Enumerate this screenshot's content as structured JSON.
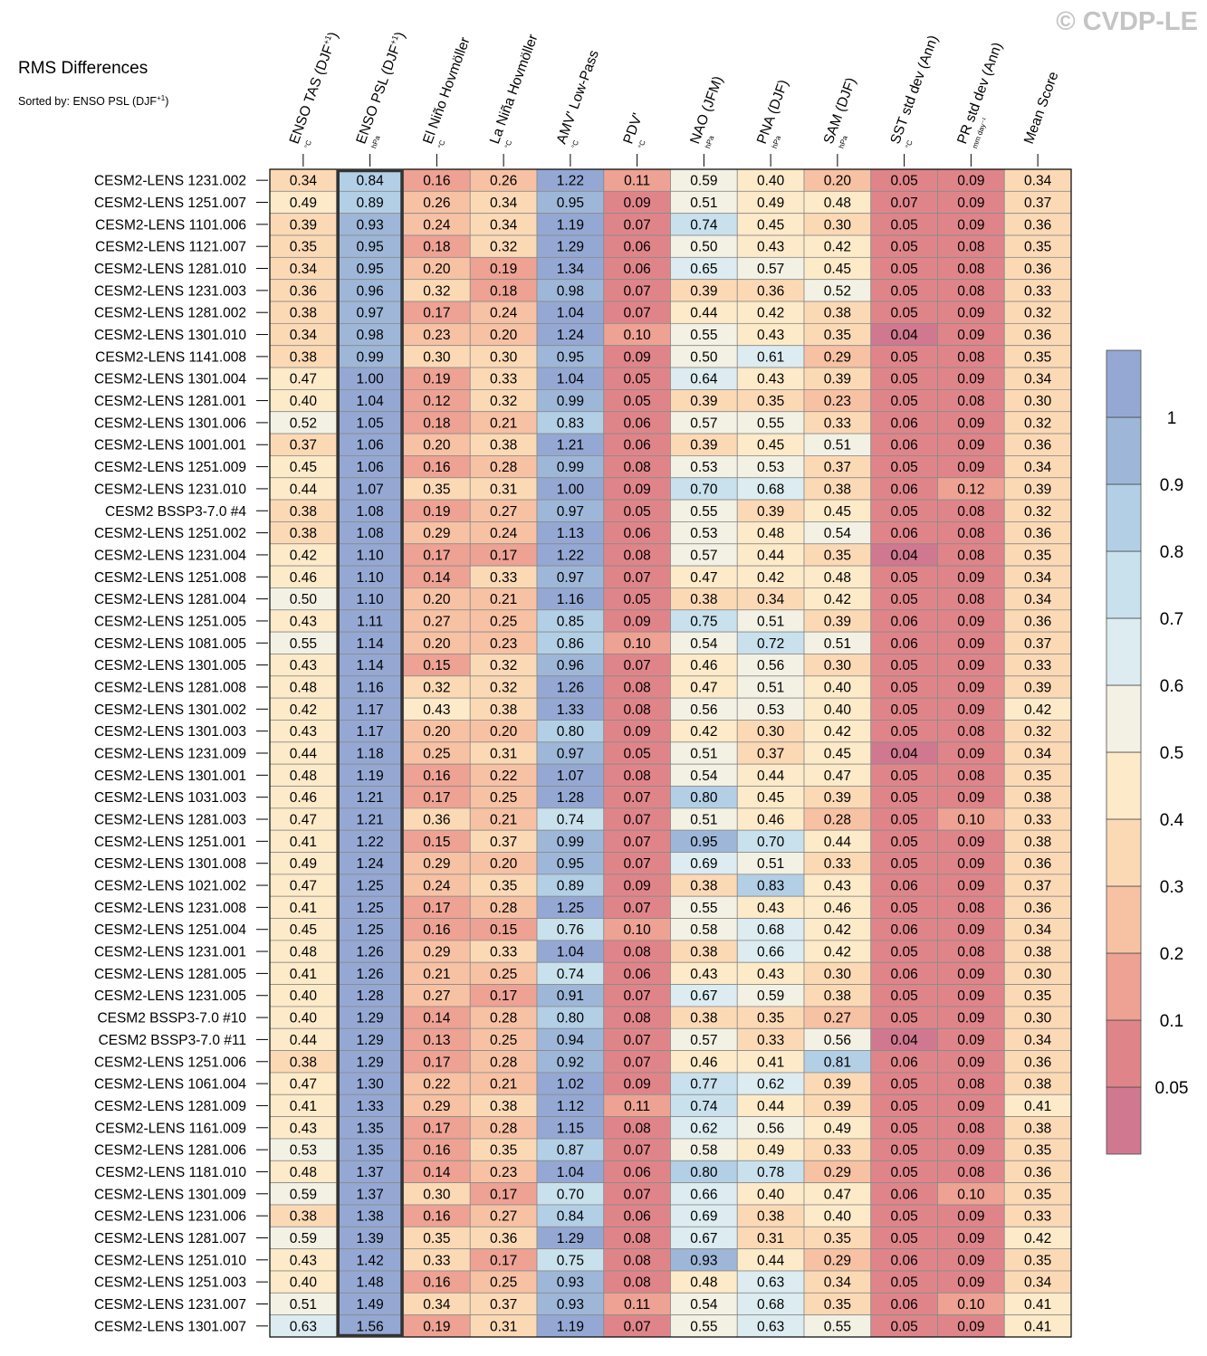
{
  "watermark": "© CVDP-LE",
  "title": "RMS Differences",
  "sort_label": "Sorted by: ENSO PSL (DJF",
  "sort_label_sup": "+1",
  "sort_label_end": ")",
  "colors": {
    "bins": [
      "#d0788f",
      "#df858a",
      "#eda294",
      "#f7c1a4",
      "#fcd9b5",
      "#fdeac8",
      "#f3f1e4",
      "#dcecf1",
      "#c9e1ec",
      "#b3cfe6",
      "#9eb7d8",
      "#95a8d4"
    ],
    "grid": "#8a8a8a",
    "frame": "#000000",
    "highlight_border": "#333333"
  },
  "colorbar": {
    "thresholds": [
      0.05,
      0.1,
      0.2,
      0.3,
      0.4,
      0.5,
      0.6,
      0.7,
      0.8,
      0.9,
      1.0
    ],
    "labels": [
      "0.05",
      "0.1",
      "0.2",
      "0.3",
      "0.4",
      "0.5",
      "0.6",
      "0.7",
      "0.8",
      "0.9",
      "1"
    ]
  },
  "chart_data": {
    "type": "heatmap",
    "title": "RMS Differences",
    "sorted_by": "ENSO PSL (DJF+1)",
    "highlighted_column": 1,
    "columns": [
      {
        "label": "ENSO TAS (DJF",
        "sup": "+1",
        "end": ")",
        "unit": "°C"
      },
      {
        "label": "ENSO PSL (DJF",
        "sup": "+1",
        "end": ")",
        "unit": "hPa"
      },
      {
        "label": "El Niño Hovmöller",
        "sup": "",
        "end": "",
        "unit": "°C"
      },
      {
        "label": "La Niña Hovmöller",
        "sup": "",
        "end": "",
        "unit": "°C"
      },
      {
        "label": "AMV' Low-Pass",
        "sup": "",
        "end": "",
        "unit": "°C"
      },
      {
        "label": "PDV'",
        "sup": "",
        "end": "",
        "unit": "°C"
      },
      {
        "label": "NAO (JFM)",
        "sup": "",
        "end": "",
        "unit": "hPa"
      },
      {
        "label": "PNA (DJF)",
        "sup": "",
        "end": "",
        "unit": "hPa"
      },
      {
        "label": "SAM (DJF)",
        "sup": "",
        "end": "",
        "unit": "hPa"
      },
      {
        "label": "SST std dev (Ann)",
        "sup": "",
        "end": "",
        "unit": "°C"
      },
      {
        "label": "PR std dev (Ann)",
        "sup": "",
        "end": "",
        "unit": "mm day⁻¹"
      },
      {
        "label": "Mean Score",
        "sup": "",
        "end": "",
        "unit": ""
      }
    ],
    "rows": [
      "CESM2-LENS 1231.002",
      "CESM2-LENS 1251.007",
      "CESM2-LENS 1101.006",
      "CESM2-LENS 1121.007",
      "CESM2-LENS 1281.010",
      "CESM2-LENS 1231.003",
      "CESM2-LENS 1281.002",
      "CESM2-LENS 1301.010",
      "CESM2-LENS 1141.008",
      "CESM2-LENS 1301.004",
      "CESM2-LENS 1281.001",
      "CESM2-LENS 1301.006",
      "CESM2-LENS 1001.001",
      "CESM2-LENS 1251.009",
      "CESM2-LENS 1231.010",
      "CESM2 BSSP3-7.0 #4",
      "CESM2-LENS 1251.002",
      "CESM2-LENS 1231.004",
      "CESM2-LENS 1251.008",
      "CESM2-LENS 1281.004",
      "CESM2-LENS 1251.005",
      "CESM2-LENS 1081.005",
      "CESM2-LENS 1301.005",
      "CESM2-LENS 1281.008",
      "CESM2-LENS 1301.002",
      "CESM2-LENS 1301.003",
      "CESM2-LENS 1231.009",
      "CESM2-LENS 1301.001",
      "CESM2-LENS 1031.003",
      "CESM2-LENS 1281.003",
      "CESM2-LENS 1251.001",
      "CESM2-LENS 1301.008",
      "CESM2-LENS 1021.002",
      "CESM2-LENS 1231.008",
      "CESM2-LENS 1251.004",
      "CESM2-LENS 1231.001",
      "CESM2-LENS 1281.005",
      "CESM2-LENS 1231.005",
      "CESM2 BSSP3-7.0 #10",
      "CESM2 BSSP3-7.0 #11",
      "CESM2-LENS 1251.006",
      "CESM2-LENS 1061.004",
      "CESM2-LENS 1281.009",
      "CESM2-LENS 1161.009",
      "CESM2-LENS 1281.006",
      "CESM2-LENS 1181.010",
      "CESM2-LENS 1301.009",
      "CESM2-LENS 1231.006",
      "CESM2-LENS 1281.007",
      "CESM2-LENS 1251.010",
      "CESM2-LENS 1251.003",
      "CESM2-LENS 1231.007",
      "CESM2-LENS 1301.007"
    ],
    "values": [
      [
        "0.34",
        "0.84",
        "0.16",
        "0.26",
        "1.22",
        "0.11",
        "0.59",
        "0.40",
        "0.20",
        "0.05",
        "0.09",
        "0.34"
      ],
      [
        "0.49",
        "0.89",
        "0.26",
        "0.34",
        "0.95",
        "0.09",
        "0.51",
        "0.49",
        "0.48",
        "0.07",
        "0.09",
        "0.37"
      ],
      [
        "0.39",
        "0.93",
        "0.24",
        "0.34",
        "1.19",
        "0.07",
        "0.74",
        "0.45",
        "0.30",
        "0.05",
        "0.09",
        "0.36"
      ],
      [
        "0.35",
        "0.95",
        "0.18",
        "0.32",
        "1.29",
        "0.06",
        "0.50",
        "0.43",
        "0.42",
        "0.05",
        "0.08",
        "0.35"
      ],
      [
        "0.34",
        "0.95",
        "0.20",
        "0.19",
        "1.34",
        "0.06",
        "0.65",
        "0.57",
        "0.45",
        "0.05",
        "0.08",
        "0.36"
      ],
      [
        "0.36",
        "0.96",
        "0.32",
        "0.18",
        "0.98",
        "0.07",
        "0.39",
        "0.36",
        "0.52",
        "0.05",
        "0.08",
        "0.33"
      ],
      [
        "0.38",
        "0.97",
        "0.17",
        "0.24",
        "1.04",
        "0.07",
        "0.44",
        "0.42",
        "0.38",
        "0.05",
        "0.09",
        "0.32"
      ],
      [
        "0.34",
        "0.98",
        "0.23",
        "0.20",
        "1.24",
        "0.10",
        "0.55",
        "0.43",
        "0.35",
        "0.04",
        "0.09",
        "0.36"
      ],
      [
        "0.38",
        "0.99",
        "0.30",
        "0.30",
        "0.95",
        "0.09",
        "0.50",
        "0.61",
        "0.29",
        "0.05",
        "0.08",
        "0.35"
      ],
      [
        "0.47",
        "1.00",
        "0.19",
        "0.33",
        "1.04",
        "0.05",
        "0.64",
        "0.43",
        "0.39",
        "0.05",
        "0.09",
        "0.34"
      ],
      [
        "0.40",
        "1.04",
        "0.12",
        "0.32",
        "0.99",
        "0.05",
        "0.39",
        "0.35",
        "0.23",
        "0.05",
        "0.08",
        "0.30"
      ],
      [
        "0.52",
        "1.05",
        "0.18",
        "0.21",
        "0.83",
        "0.06",
        "0.57",
        "0.55",
        "0.33",
        "0.06",
        "0.09",
        "0.32"
      ],
      [
        "0.37",
        "1.06",
        "0.20",
        "0.38",
        "1.21",
        "0.06",
        "0.39",
        "0.45",
        "0.51",
        "0.06",
        "0.09",
        "0.36"
      ],
      [
        "0.45",
        "1.06",
        "0.16",
        "0.28",
        "0.99",
        "0.08",
        "0.53",
        "0.53",
        "0.37",
        "0.05",
        "0.09",
        "0.34"
      ],
      [
        "0.44",
        "1.07",
        "0.35",
        "0.31",
        "1.00",
        "0.09",
        "0.70",
        "0.68",
        "0.38",
        "0.06",
        "0.12",
        "0.39"
      ],
      [
        "0.38",
        "1.08",
        "0.19",
        "0.27",
        "0.97",
        "0.05",
        "0.55",
        "0.39",
        "0.45",
        "0.05",
        "0.08",
        "0.32"
      ],
      [
        "0.38",
        "1.08",
        "0.29",
        "0.24",
        "1.13",
        "0.06",
        "0.53",
        "0.48",
        "0.54",
        "0.06",
        "0.08",
        "0.36"
      ],
      [
        "0.42",
        "1.10",
        "0.17",
        "0.17",
        "1.22",
        "0.08",
        "0.57",
        "0.44",
        "0.35",
        "0.04",
        "0.08",
        "0.35"
      ],
      [
        "0.46",
        "1.10",
        "0.14",
        "0.33",
        "0.97",
        "0.07",
        "0.47",
        "0.42",
        "0.48",
        "0.05",
        "0.09",
        "0.34"
      ],
      [
        "0.50",
        "1.10",
        "0.20",
        "0.21",
        "1.16",
        "0.05",
        "0.38",
        "0.34",
        "0.42",
        "0.05",
        "0.08",
        "0.34"
      ],
      [
        "0.43",
        "1.11",
        "0.27",
        "0.25",
        "0.85",
        "0.09",
        "0.75",
        "0.51",
        "0.39",
        "0.06",
        "0.09",
        "0.36"
      ],
      [
        "0.55",
        "1.14",
        "0.20",
        "0.23",
        "0.86",
        "0.10",
        "0.54",
        "0.72",
        "0.51",
        "0.06",
        "0.09",
        "0.37"
      ],
      [
        "0.43",
        "1.14",
        "0.15",
        "0.32",
        "0.96",
        "0.07",
        "0.46",
        "0.56",
        "0.30",
        "0.05",
        "0.09",
        "0.33"
      ],
      [
        "0.48",
        "1.16",
        "0.32",
        "0.32",
        "1.26",
        "0.08",
        "0.47",
        "0.51",
        "0.40",
        "0.05",
        "0.09",
        "0.39"
      ],
      [
        "0.42",
        "1.17",
        "0.43",
        "0.38",
        "1.33",
        "0.08",
        "0.56",
        "0.53",
        "0.40",
        "0.05",
        "0.09",
        "0.42"
      ],
      [
        "0.43",
        "1.17",
        "0.20",
        "0.20",
        "0.80",
        "0.09",
        "0.42",
        "0.30",
        "0.42",
        "0.05",
        "0.08",
        "0.32"
      ],
      [
        "0.44",
        "1.18",
        "0.25",
        "0.31",
        "0.97",
        "0.05",
        "0.51",
        "0.37",
        "0.45",
        "0.04",
        "0.09",
        "0.34"
      ],
      [
        "0.48",
        "1.19",
        "0.16",
        "0.22",
        "1.07",
        "0.08",
        "0.54",
        "0.44",
        "0.47",
        "0.05",
        "0.08",
        "0.35"
      ],
      [
        "0.46",
        "1.21",
        "0.17",
        "0.25",
        "1.28",
        "0.07",
        "0.80",
        "0.45",
        "0.39",
        "0.05",
        "0.09",
        "0.38"
      ],
      [
        "0.47",
        "1.21",
        "0.36",
        "0.21",
        "0.74",
        "0.07",
        "0.51",
        "0.46",
        "0.28",
        "0.05",
        "0.10",
        "0.33"
      ],
      [
        "0.41",
        "1.22",
        "0.15",
        "0.37",
        "0.99",
        "0.07",
        "0.95",
        "0.70",
        "0.44",
        "0.05",
        "0.09",
        "0.38"
      ],
      [
        "0.49",
        "1.24",
        "0.29",
        "0.20",
        "0.95",
        "0.07",
        "0.69",
        "0.51",
        "0.33",
        "0.05",
        "0.09",
        "0.36"
      ],
      [
        "0.47",
        "1.25",
        "0.24",
        "0.35",
        "0.89",
        "0.09",
        "0.38",
        "0.83",
        "0.43",
        "0.06",
        "0.09",
        "0.37"
      ],
      [
        "0.41",
        "1.25",
        "0.17",
        "0.28",
        "1.25",
        "0.07",
        "0.55",
        "0.43",
        "0.46",
        "0.05",
        "0.08",
        "0.36"
      ],
      [
        "0.45",
        "1.25",
        "0.16",
        "0.15",
        "0.76",
        "0.10",
        "0.58",
        "0.68",
        "0.42",
        "0.06",
        "0.09",
        "0.34"
      ],
      [
        "0.48",
        "1.26",
        "0.29",
        "0.33",
        "1.04",
        "0.08",
        "0.38",
        "0.66",
        "0.42",
        "0.05",
        "0.08",
        "0.38"
      ],
      [
        "0.41",
        "1.26",
        "0.21",
        "0.25",
        "0.74",
        "0.06",
        "0.43",
        "0.43",
        "0.30",
        "0.06",
        "0.09",
        "0.30"
      ],
      [
        "0.40",
        "1.28",
        "0.27",
        "0.17",
        "0.91",
        "0.07",
        "0.67",
        "0.59",
        "0.38",
        "0.05",
        "0.09",
        "0.35"
      ],
      [
        "0.40",
        "1.29",
        "0.14",
        "0.28",
        "0.80",
        "0.08",
        "0.38",
        "0.35",
        "0.27",
        "0.05",
        "0.09",
        "0.30"
      ],
      [
        "0.44",
        "1.29",
        "0.13",
        "0.25",
        "0.94",
        "0.07",
        "0.57",
        "0.33",
        "0.56",
        "0.04",
        "0.09",
        "0.34"
      ],
      [
        "0.38",
        "1.29",
        "0.17",
        "0.28",
        "0.92",
        "0.07",
        "0.46",
        "0.41",
        "0.81",
        "0.06",
        "0.09",
        "0.36"
      ],
      [
        "0.47",
        "1.30",
        "0.22",
        "0.21",
        "1.02",
        "0.09",
        "0.77",
        "0.62",
        "0.39",
        "0.05",
        "0.08",
        "0.38"
      ],
      [
        "0.41",
        "1.33",
        "0.29",
        "0.38",
        "1.12",
        "0.11",
        "0.74",
        "0.44",
        "0.39",
        "0.05",
        "0.09",
        "0.41"
      ],
      [
        "0.43",
        "1.35",
        "0.17",
        "0.28",
        "1.15",
        "0.08",
        "0.62",
        "0.56",
        "0.49",
        "0.05",
        "0.08",
        "0.38"
      ],
      [
        "0.53",
        "1.35",
        "0.16",
        "0.35",
        "0.87",
        "0.07",
        "0.58",
        "0.49",
        "0.33",
        "0.05",
        "0.09",
        "0.35"
      ],
      [
        "0.48",
        "1.37",
        "0.14",
        "0.23",
        "1.04",
        "0.06",
        "0.80",
        "0.78",
        "0.29",
        "0.05",
        "0.08",
        "0.36"
      ],
      [
        "0.59",
        "1.37",
        "0.30",
        "0.17",
        "0.70",
        "0.07",
        "0.66",
        "0.40",
        "0.47",
        "0.06",
        "0.10",
        "0.35"
      ],
      [
        "0.38",
        "1.38",
        "0.16",
        "0.27",
        "0.84",
        "0.06",
        "0.69",
        "0.38",
        "0.40",
        "0.05",
        "0.09",
        "0.33"
      ],
      [
        "0.59",
        "1.39",
        "0.35",
        "0.36",
        "1.29",
        "0.08",
        "0.67",
        "0.31",
        "0.35",
        "0.05",
        "0.09",
        "0.42"
      ],
      [
        "0.43",
        "1.42",
        "0.33",
        "0.17",
        "0.75",
        "0.08",
        "0.93",
        "0.44",
        "0.29",
        "0.06",
        "0.09",
        "0.35"
      ],
      [
        "0.40",
        "1.48",
        "0.16",
        "0.25",
        "0.93",
        "0.08",
        "0.48",
        "0.63",
        "0.34",
        "0.05",
        "0.09",
        "0.34"
      ],
      [
        "0.51",
        "1.49",
        "0.34",
        "0.37",
        "0.93",
        "0.11",
        "0.54",
        "0.68",
        "0.35",
        "0.06",
        "0.10",
        "0.41"
      ],
      [
        "0.63",
        "1.56",
        "0.19",
        "0.31",
        "1.19",
        "0.07",
        "0.55",
        "0.63",
        "0.55",
        "0.05",
        "0.09",
        "0.41"
      ]
    ]
  }
}
